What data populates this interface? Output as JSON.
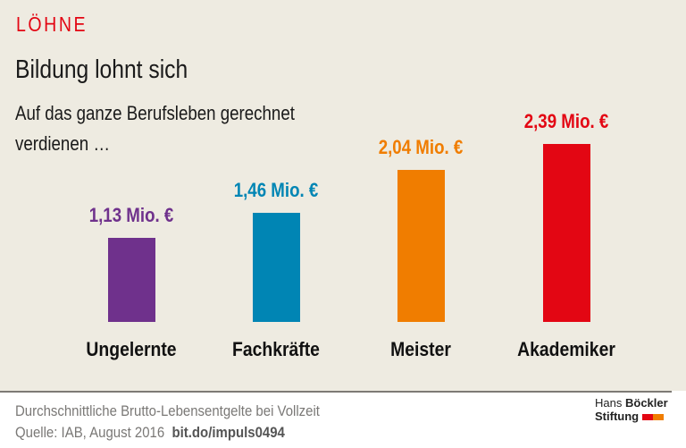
{
  "kicker": "LÖHNE",
  "title": "Bildung lohnt sich",
  "subtitle_line1": "Auf das ganze Berufsleben gerechnet",
  "subtitle_line2": "verdienen …",
  "chart_data": {
    "type": "bar",
    "categories": [
      "Ungelernte",
      "Fachkräfte",
      "Meister",
      "Akademiker"
    ],
    "values": [
      1.13,
      1.46,
      2.04,
      2.39
    ],
    "value_labels": [
      "1,13 Mio. €",
      "1,46 Mio. €",
      "2,04 Mio. €",
      "2,39 Mio. €"
    ],
    "colors": [
      "#6f318c",
      "#0085b4",
      "#f07d00",
      "#e30613"
    ],
    "title": "Bildung lohnt sich",
    "unit": "Mio. €",
    "grid": false
  },
  "footer": {
    "note": "Durchschnittliche Brutto-Lebensentgelte bei Vollzeit",
    "source": "Quelle: IAB, August 2016",
    "link": "bit.do/impuls0494"
  },
  "logo": {
    "line1a": "Hans",
    "line1b": "Böckler",
    "line2": "Stiftung",
    "colors": [
      "#e30613",
      "#f07d00"
    ]
  }
}
